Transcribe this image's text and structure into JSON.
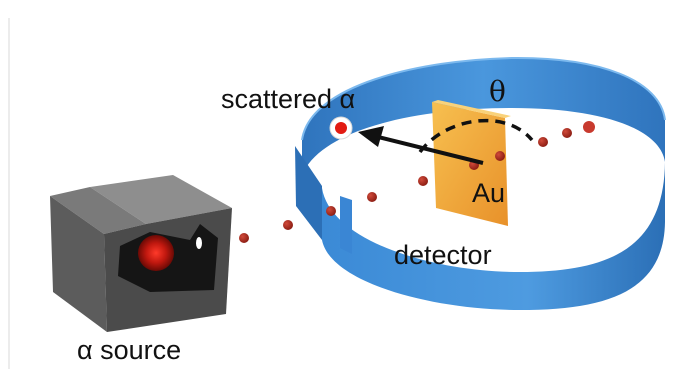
{
  "labels": {
    "scattered": "scattered α",
    "theta": "θ",
    "gold": "Au",
    "detector": "detector",
    "source": "α source"
  },
  "colors": {
    "ring": "#3a86d4",
    "ring_dark": "#1f5f9e",
    "foil": "#f0a733",
    "particle": "#a52a1e",
    "box": "#5e5e5e"
  }
}
